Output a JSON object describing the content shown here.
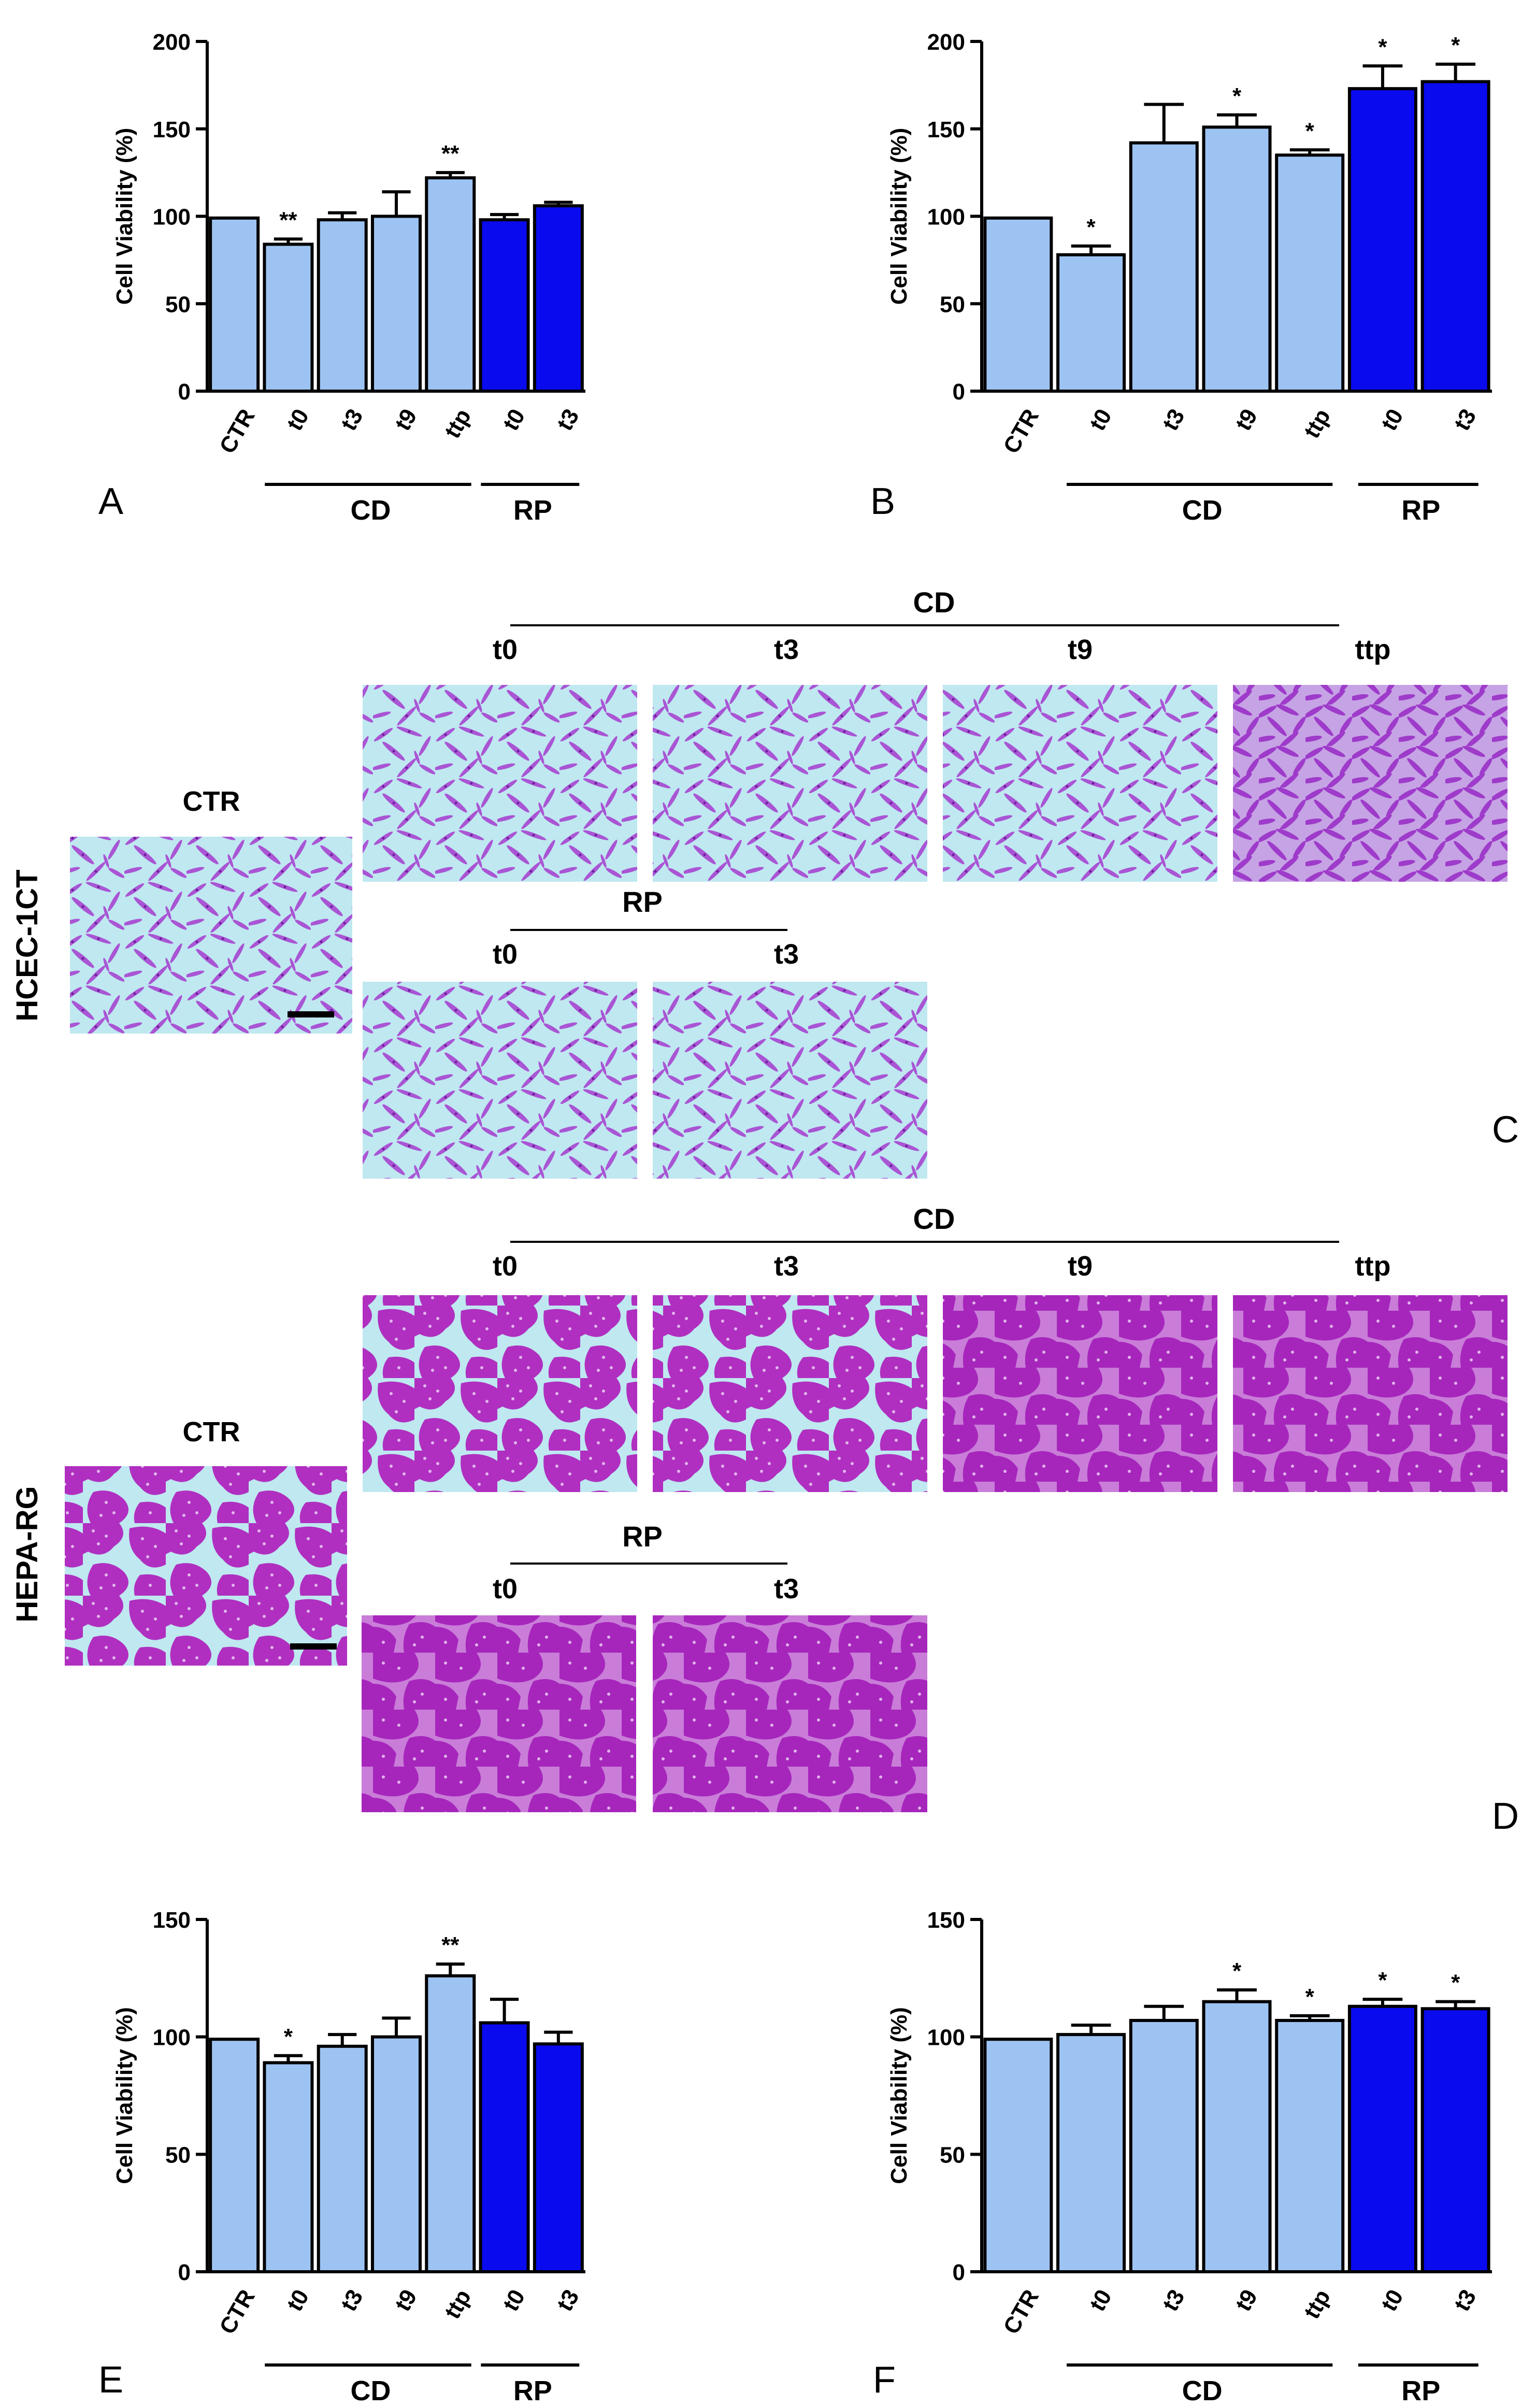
{
  "colors": {
    "cd_bar": "#9DC3F2",
    "rp_bar": "#0A0AEE",
    "ctr_bar": "#9DC3F2",
    "outline": "#000000",
    "stain_light": "#BFE8F0",
    "stain_dark": "#A33CD0"
  },
  "panel_letters": {
    "A": "A",
    "B": "B",
    "C": "C",
    "D": "D",
    "E": "E",
    "F": "F"
  },
  "chart_data": [
    {
      "panel": "A",
      "type": "bar",
      "categories": [
        "CTR",
        "t0",
        "t3",
        "t9",
        "ttp",
        "t0",
        "t3"
      ],
      "values": [
        99,
        84,
        98,
        100,
        122,
        98,
        106
      ],
      "errors": [
        0,
        3,
        4,
        14,
        3,
        3,
        2
      ],
      "significance": [
        "",
        "**",
        "",
        "",
        "**",
        "",
        ""
      ],
      "groups": [
        "ctr",
        "cd",
        "cd",
        "cd",
        "cd",
        "rp",
        "rp"
      ],
      "ylabel": "Cell Viability (%)",
      "ylim": [
        0,
        200
      ],
      "yticks": [
        "0",
        "50",
        "100",
        "150",
        "200"
      ],
      "ytick_values": [
        0,
        50,
        100,
        150,
        200
      ],
      "brackets": [
        {
          "label": "CD",
          "from": 1,
          "to": 4
        },
        {
          "label": "RP",
          "from": 5,
          "to": 6
        }
      ]
    },
    {
      "panel": "B",
      "type": "bar",
      "categories": [
        "CTR",
        "t0",
        "t3",
        "t9",
        "ttp",
        "t0",
        "t3"
      ],
      "values": [
        99,
        78,
        142,
        151,
        135,
        173,
        177
      ],
      "errors": [
        0,
        5,
        22,
        7,
        3,
        13,
        10
      ],
      "significance": [
        "",
        "*",
        "",
        "*",
        "*",
        "*",
        "*"
      ],
      "groups": [
        "ctr",
        "cd",
        "cd",
        "cd",
        "cd",
        "rp",
        "rp"
      ],
      "ylabel": "Cell Viability (%)",
      "ylim": [
        0,
        200
      ],
      "yticks": [
        "0",
        "50",
        "100",
        "150",
        "200"
      ],
      "ytick_values": [
        0,
        50,
        100,
        150,
        200
      ],
      "brackets": [
        {
          "label": "CD",
          "from": 1,
          "to": 4
        },
        {
          "label": "RP",
          "from": 5,
          "to": 6
        }
      ]
    },
    {
      "panel": "E",
      "type": "bar",
      "categories": [
        "CTR",
        "t0",
        "t3",
        "t9",
        "ttp",
        "t0",
        "t3"
      ],
      "values": [
        99,
        89,
        96,
        100,
        126,
        106,
        97
      ],
      "errors": [
        0,
        3,
        5,
        8,
        5,
        10,
        5
      ],
      "significance": [
        "",
        "*",
        "",
        "",
        "**",
        "",
        ""
      ],
      "groups": [
        "ctr",
        "cd",
        "cd",
        "cd",
        "cd",
        "rp",
        "rp"
      ],
      "ylabel": "Cell Viability (%)",
      "ylim": [
        0,
        150
      ],
      "yticks": [
        "0",
        "50",
        "100",
        "150"
      ],
      "ytick_values": [
        0,
        50,
        100,
        150
      ],
      "brackets": [
        {
          "label": "CD",
          "from": 1,
          "to": 4
        },
        {
          "label": "RP",
          "from": 5,
          "to": 6
        }
      ]
    },
    {
      "panel": "F",
      "type": "bar",
      "categories": [
        "CTR",
        "t0",
        "t3",
        "t9",
        "ttp",
        "t0",
        "t3"
      ],
      "values": [
        99,
        101,
        107,
        115,
        107,
        113,
        112
      ],
      "errors": [
        0,
        4,
        6,
        5,
        2,
        3,
        3
      ],
      "significance": [
        "",
        "",
        "",
        "*",
        "*",
        "*",
        "*"
      ],
      "groups": [
        "ctr",
        "cd",
        "cd",
        "cd",
        "cd",
        "rp",
        "rp"
      ],
      "ylabel": "Cell Viability (%)",
      "ylim": [
        0,
        150
      ],
      "yticks": [
        "0",
        "50",
        "100",
        "150"
      ],
      "ytick_values": [
        0,
        50,
        100,
        150
      ],
      "brackets": [
        {
          "label": "CD",
          "from": 1,
          "to": 4
        },
        {
          "label": "RP",
          "from": 5,
          "to": 6
        }
      ]
    }
  ],
  "micrographs": {
    "C": {
      "row_label": "HCEC-1CT",
      "ctr_label": "CTR",
      "cd_label": "CD",
      "rp_label": "RP",
      "cd_times": [
        "t0",
        "t3",
        "t9",
        "ttp"
      ],
      "rp_times": [
        "t0",
        "t3"
      ]
    },
    "D": {
      "row_label": "HEPA-RG",
      "ctr_label": "CTR",
      "cd_label": "CD",
      "rp_label": "RP",
      "cd_times": [
        "t0",
        "t3",
        "t9",
        "ttp"
      ],
      "rp_times": [
        "t0",
        "t3"
      ]
    }
  }
}
